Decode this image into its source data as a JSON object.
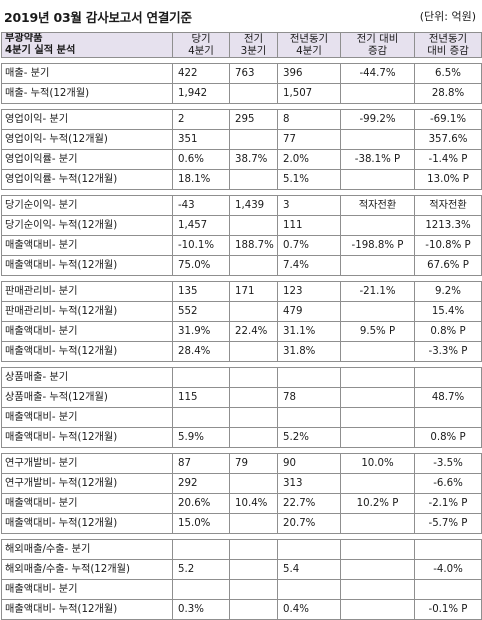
{
  "header": {
    "title": "2019년 03월 감사보고서 연결기준",
    "unit": "(단위: 억원)"
  },
  "table": {
    "company": "부광약품",
    "subtitle": "4분기 실적 분석",
    "columns": [
      [
        "당기",
        "4분기"
      ],
      [
        "전기",
        "3분기"
      ],
      [
        "전년동기",
        "4분기"
      ],
      [
        "전기 대비",
        "증감"
      ],
      [
        "전년동기",
        "대비 증감"
      ]
    ],
    "groups": [
      {
        "rows": [
          {
            "label": "매출- 분기",
            "v": [
              "422",
              "763",
              "396",
              "-44.7%",
              "6.5%"
            ]
          },
          {
            "label": "매출- 누적(12개월)",
            "v": [
              "1,942",
              "",
              "1,507",
              "",
              "28.8%"
            ]
          }
        ]
      },
      {
        "rows": [
          {
            "label": "영업이익- 분기",
            "v": [
              "2",
              "295",
              "8",
              "-99.2%",
              "-69.1%"
            ]
          },
          {
            "label": "영업이익- 누적(12개월)",
            "v": [
              "351",
              "",
              "77",
              "",
              "357.6%"
            ]
          },
          {
            "label": "영업이익률- 분기",
            "v": [
              "0.6%",
              "38.7%",
              "2.0%",
              "-38.1% P",
              "-1.4% P"
            ]
          },
          {
            "label": "영업이익률- 누적(12개월)",
            "v": [
              "18.1%",
              "",
              "5.1%",
              "",
              "13.0% P"
            ]
          }
        ]
      },
      {
        "rows": [
          {
            "label": "당기순이익- 분기",
            "v": [
              "-43",
              "1,439",
              "3",
              "적자전환",
              "적자전환"
            ]
          },
          {
            "label": "당기순이익- 누적(12개월)",
            "v": [
              "1,457",
              "",
              "111",
              "",
              "1213.3%"
            ]
          },
          {
            "label": "매출액대비- 분기",
            "v": [
              "-10.1%",
              "188.7%",
              "0.7%",
              "-198.8% P",
              "-10.8% P"
            ]
          },
          {
            "label": "매출액대비- 누적(12개월)",
            "v": [
              "75.0%",
              "",
              "7.4%",
              "",
              "67.6% P"
            ]
          }
        ]
      },
      {
        "rows": [
          {
            "label": "판매관리비- 분기",
            "v": [
              "135",
              "171",
              "123",
              "-21.1%",
              "9.2%"
            ]
          },
          {
            "label": "판매관리비- 누적(12개월)",
            "v": [
              "552",
              "",
              "479",
              "",
              "15.4%"
            ]
          },
          {
            "label": "매출액대비- 분기",
            "v": [
              "31.9%",
              "22.4%",
              "31.1%",
              "9.5% P",
              "0.8% P"
            ]
          },
          {
            "label": "매출액대비- 누적(12개월)",
            "v": [
              "28.4%",
              "",
              "31.8%",
              "",
              "-3.3% P"
            ]
          }
        ]
      },
      {
        "rows": [
          {
            "label": "상품매출- 분기",
            "v": [
              "",
              "",
              "",
              "",
              ""
            ]
          },
          {
            "label": "상품매출- 누적(12개월)",
            "v": [
              "115",
              "",
              "78",
              "",
              "48.7%"
            ]
          },
          {
            "label": "매출액대비- 분기",
            "v": [
              "",
              "",
              "",
              "",
              ""
            ]
          },
          {
            "label": "매출액대비- 누적(12개월)",
            "v": [
              "5.9%",
              "",
              "5.2%",
              "",
              "0.8% P"
            ]
          }
        ]
      },
      {
        "rows": [
          {
            "label": "연구개발비- 분기",
            "v": [
              "87",
              "79",
              "90",
              "10.0%",
              "-3.5%"
            ]
          },
          {
            "label": "연구개발비- 누적(12개월)",
            "v": [
              "292",
              "",
              "313",
              "",
              "-6.6%"
            ]
          },
          {
            "label": "매출액대비- 분기",
            "v": [
              "20.6%",
              "10.4%",
              "22.7%",
              "10.2% P",
              "-2.1% P"
            ]
          },
          {
            "label": "매출액대비- 누적(12개월)",
            "v": [
              "15.0%",
              "",
              "20.7%",
              "",
              "-5.7% P"
            ]
          }
        ]
      },
      {
        "rows": [
          {
            "label": "해외매출/수출- 분기",
            "v": [
              "",
              "",
              "",
              "",
              ""
            ]
          },
          {
            "label": "해외매출/수출- 누적(12개월)",
            "v": [
              "5.2",
              "",
              "5.4",
              "",
              "-4.0%"
            ]
          },
          {
            "label": "매출액대비- 분기",
            "v": [
              "",
              "",
              "",
              "",
              ""
            ]
          },
          {
            "label": "매출액대비- 누적(12개월)",
            "v": [
              "0.3%",
              "",
              "0.4%",
              "",
              "-0.1% P"
            ]
          }
        ]
      }
    ]
  }
}
